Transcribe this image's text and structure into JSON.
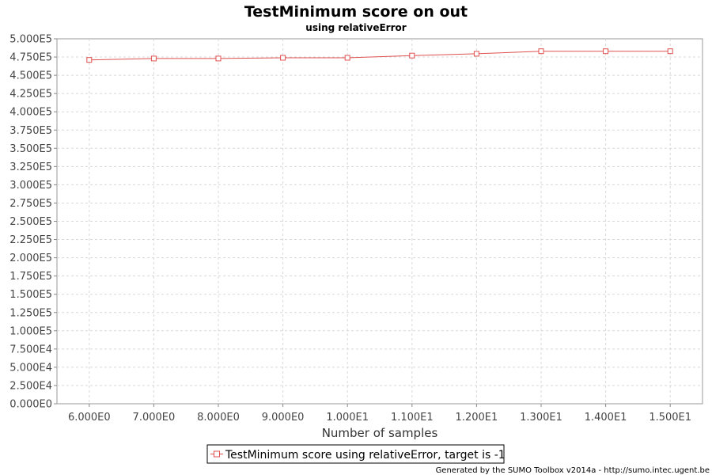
{
  "chart_data": {
    "type": "line",
    "title": "TestMinimum score on out",
    "subtitle": "using relativeError",
    "xlabel": "Number of samples",
    "ylabel": "",
    "x": [
      6,
      7,
      8,
      9,
      10,
      11,
      12,
      13,
      14,
      15
    ],
    "x_tick_labels": [
      "6.000E0",
      "7.000E0",
      "8.000E0",
      "9.000E0",
      "1.000E1",
      "1.100E1",
      "1.200E1",
      "1.300E1",
      "1.400E1",
      "1.500E1"
    ],
    "xlim": [
      5.5,
      15.5
    ],
    "ylim": [
      0,
      500000
    ],
    "y_ticks": [
      0,
      25000,
      50000,
      75000,
      100000,
      125000,
      150000,
      175000,
      200000,
      225000,
      250000,
      275000,
      300000,
      325000,
      350000,
      375000,
      400000,
      425000,
      450000,
      475000,
      500000
    ],
    "y_tick_labels": [
      "0.000E0",
      "2.500E4",
      "5.000E4",
      "7.500E4",
      "1.000E5",
      "1.250E5",
      "1.500E5",
      "1.750E5",
      "2.000E5",
      "2.250E5",
      "2.500E5",
      "2.750E5",
      "3.000E5",
      "3.250E5",
      "3.500E5",
      "3.750E5",
      "4.000E5",
      "4.250E5",
      "4.500E5",
      "4.750E5",
      "5.000E5"
    ],
    "grid": true,
    "legend_position": "bottom",
    "series": [
      {
        "name": "TestMinimum score using relativeError, target is -1",
        "color": "#e05050",
        "marker": "square",
        "values": [
          471000,
          473000,
          473000,
          474000,
          474000,
          477000,
          479500,
          483000,
          483000,
          483000
        ]
      }
    ]
  },
  "footer": "Generated by the SUMO Toolbox v2014a - http://sumo.intec.ugent.be"
}
